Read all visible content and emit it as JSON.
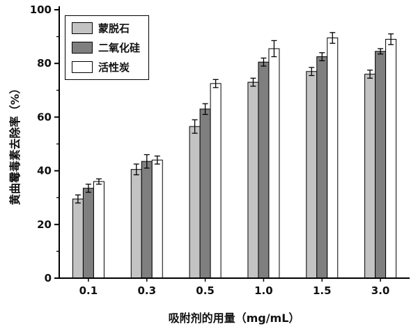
{
  "chart_data": {
    "type": "bar",
    "title": "",
    "xlabel": "吸附剂的用量（mg/mL）",
    "ylabel": "黄曲霉毒素去除率（%）",
    "categories": [
      "0.1",
      "0.3",
      "0.5",
      "1.0",
      "1.5",
      "3.0"
    ],
    "series": [
      {
        "name": "蒙脱石",
        "color": "#c3c3c3",
        "values": [
          29.5,
          40.5,
          56.5,
          73,
          77,
          76
        ],
        "errors": [
          1.5,
          2,
          2.5,
          1.5,
          1.5,
          1.5
        ]
      },
      {
        "name": "二氧化硅",
        "color": "#7f7f7f",
        "values": [
          33.5,
          43.5,
          63,
          80.5,
          82.5,
          84.5
        ],
        "errors": [
          1.5,
          2.5,
          2,
          1.5,
          1.5,
          1
        ]
      },
      {
        "name": "活性炭",
        "color": "#ffffff",
        "values": [
          36,
          44,
          72.5,
          85.5,
          89.5,
          89
        ],
        "errors": [
          1,
          1.5,
          1.5,
          3,
          2,
          2
        ]
      }
    ],
    "ylim": [
      0,
      100
    ],
    "yticks": [
      0,
      20,
      40,
      60,
      80,
      100
    ],
    "grid": false,
    "legend_position": "top-left",
    "axis_color": "#000000",
    "error_bar_color": "#000000"
  }
}
